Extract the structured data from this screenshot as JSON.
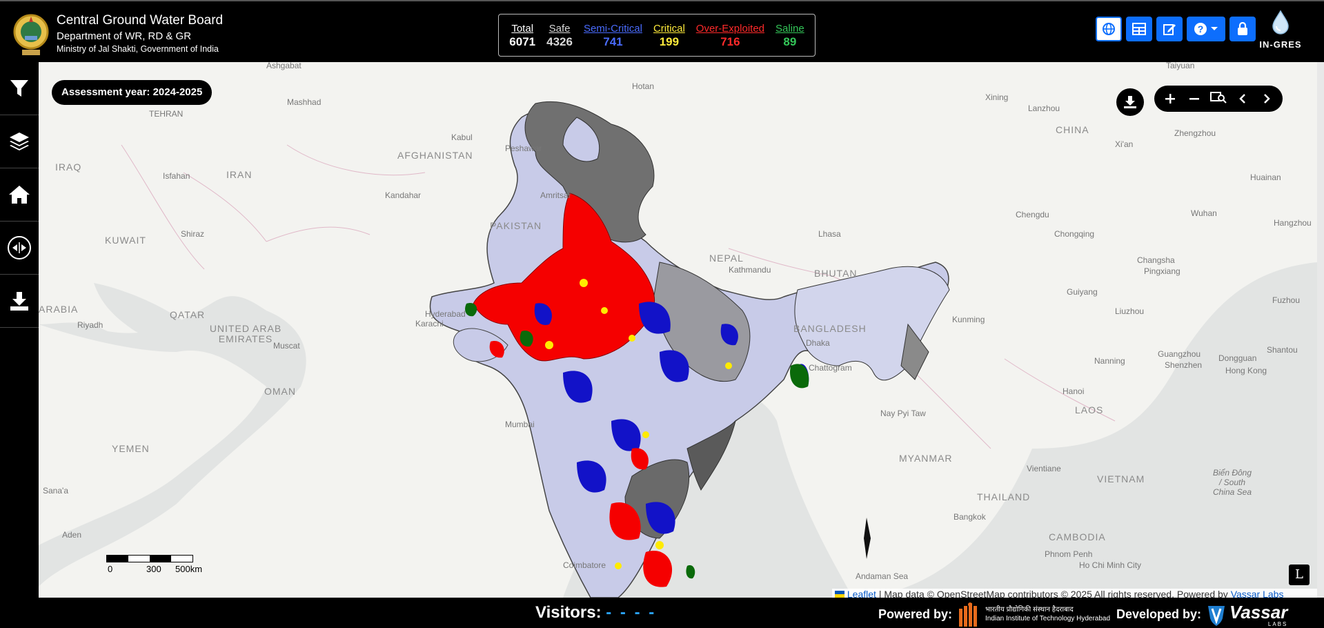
{
  "header": {
    "org_line1": "Central Ground Water Board",
    "org_line2": "Department of WR, RD & GR",
    "org_line3": "Ministry of Jal Shakti, Government of India",
    "logo_text": "IN-GRES"
  },
  "stats": [
    {
      "label": "Total",
      "value": "6071",
      "color": "#ffffff"
    },
    {
      "label": "Safe",
      "value": "4326",
      "color": "#d8d8d8"
    },
    {
      "label": "Semi-Critical",
      "value": "741",
      "color": "#4a6cff"
    },
    {
      "label": "Critical",
      "value": "199",
      "color": "#ffeb3b"
    },
    {
      "label": "Over-Exploited",
      "value": "716",
      "color": "#ff2a2a"
    },
    {
      "label": "Saline",
      "value": "89",
      "color": "#34c759"
    }
  ],
  "toolbar": {
    "icons": [
      "globe-icon",
      "table-icon",
      "edit-icon",
      "help-icon",
      "lock-icon"
    ]
  },
  "sidebar": {
    "icons": [
      "filter-icon",
      "layers-icon",
      "home-icon",
      "swipe-icon",
      "download-icon"
    ]
  },
  "map": {
    "assessment_year": "Assessment year: 2024-2025",
    "countries": [
      {
        "name": "AFGHANISTAN"
      },
      {
        "name": "PAKISTAN"
      },
      {
        "name": "IRAN"
      },
      {
        "name": "IRAQ"
      },
      {
        "name": "KUWAIT"
      },
      {
        "name": "QATAR"
      },
      {
        "name": "UNITED ARAB EMIRATES"
      },
      {
        "name": "OMAN"
      },
      {
        "name": "YEMEN"
      },
      {
        "name": "ARABIA"
      },
      {
        "name": "NEPAL"
      },
      {
        "name": "BHUTAN"
      },
      {
        "name": "BANGLADESH"
      },
      {
        "name": "MYANMAR"
      },
      {
        "name": "THAILAND"
      },
      {
        "name": "LAOS"
      },
      {
        "name": "VIETNAM"
      },
      {
        "name": "CAMBODIA"
      },
      {
        "name": "CHINA"
      }
    ],
    "places": [
      {
        "name": "Ashgabat"
      },
      {
        "name": "Mashhad"
      },
      {
        "name": "TEHRAN"
      },
      {
        "name": "Isfahan"
      },
      {
        "name": "Kabul"
      },
      {
        "name": "Peshawar"
      },
      {
        "name": "Kandahar"
      },
      {
        "name": "Amritsar"
      },
      {
        "name": "Shiraz"
      },
      {
        "name": "Hotan"
      },
      {
        "name": "Hyderabad"
      },
      {
        "name": "Karachi"
      },
      {
        "name": "Riyadh"
      },
      {
        "name": "Muscat"
      },
      {
        "name": "Sana'a"
      },
      {
        "name": "Aden"
      },
      {
        "name": "Lhasa"
      },
      {
        "name": "Kathmandu"
      },
      {
        "name": "Dhaka"
      },
      {
        "name": "Chattogram"
      },
      {
        "name": "Nay Pyi Taw"
      },
      {
        "name": "Bangkok"
      },
      {
        "name": "Vientiane"
      },
      {
        "name": "Hanoi"
      },
      {
        "name": "Phnom Penh"
      },
      {
        "name": "Ho Chi Minh City"
      },
      {
        "name": "Kunming"
      },
      {
        "name": "Nanning"
      },
      {
        "name": "Chengdu"
      },
      {
        "name": "Chongqing"
      },
      {
        "name": "Guiyang"
      },
      {
        "name": "Changsha"
      },
      {
        "name": "Wuhan"
      },
      {
        "name": "Xining"
      },
      {
        "name": "Lanzhou"
      },
      {
        "name": "Xi'an"
      },
      {
        "name": "Zhengzhou"
      },
      {
        "name": "Taiyuan"
      },
      {
        "name": "Guangzhou"
      },
      {
        "name": "Shenzhen"
      },
      {
        "name": "Hong Kong"
      },
      {
        "name": "Fuzhou"
      },
      {
        "name": "Hangzhou"
      },
      {
        "name": "Huainan"
      },
      {
        "name": "Pingxiang"
      },
      {
        "name": "Liuzhou"
      },
      {
        "name": "Dongguan"
      },
      {
        "name": "Shantou"
      },
      {
        "name": "Mumbai"
      },
      {
        "name": "Coimbatore"
      },
      {
        "name": "Andaman Sea"
      },
      {
        "name": "Biển Đông / South China Sea"
      }
    ],
    "scale_labels": [
      "0",
      "300",
      "500km"
    ],
    "layer_button": "L",
    "attribution": {
      "leaflet": "Leaflet",
      "text": " | Map data © OpenStreetMap contributors © 2025 All rights reserved. Powered by ",
      "vassar": "Vassar Labs"
    },
    "legend_colors": {
      "safe": "#c8cbe8",
      "semi_critical": "#1212c8",
      "critical": "#ffeb00",
      "over_exploited": "#f50000",
      "saline": "#0a6a0a",
      "not_assessed": "#6e6e6e"
    }
  },
  "footer": {
    "visitors_label": "Visitors:",
    "visitors_value": "- - - -",
    "powered_by": "Powered by:",
    "iith_line1": "भारतीय प्रौद्योगिकी संस्थान हैदराबाद",
    "iith_line2": "Indian Institute of Technology Hyderabad",
    "developed_by": "Developed by:",
    "vassar_text": "Vassar",
    "vassar_sub": "LABS"
  }
}
